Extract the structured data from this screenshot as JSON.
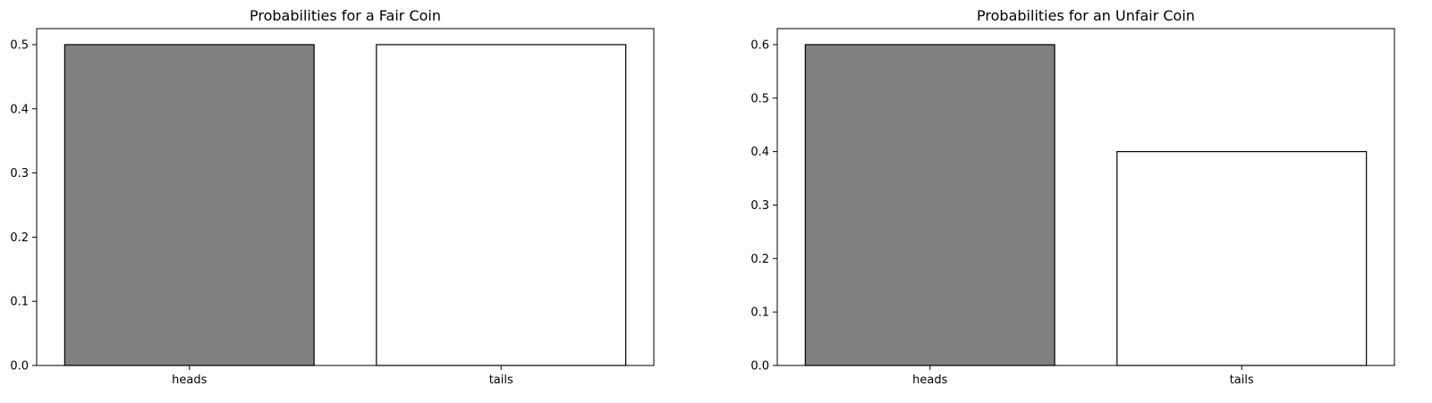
{
  "chart_data": [
    {
      "type": "bar",
      "title": "Probabilities for a Fair Coin",
      "xlabel": "",
      "ylabel": "",
      "categories": [
        "heads",
        "tails"
      ],
      "values": [
        0.5,
        0.5
      ],
      "bar_colors": [
        "#808080",
        "#ffffff"
      ],
      "edge_color": "#000000",
      "ylim": [
        0,
        0.525
      ],
      "yticks": [
        0.0,
        0.1,
        0.2,
        0.3,
        0.4,
        0.5
      ],
      "ytick_labels": [
        "0.0",
        "0.1",
        "0.2",
        "0.3",
        "0.4",
        "0.5"
      ],
      "grid": false,
      "legend": "none"
    },
    {
      "type": "bar",
      "title": "Probabilities for an Unfair Coin",
      "xlabel": "",
      "ylabel": "",
      "categories": [
        "heads",
        "tails"
      ],
      "values": [
        0.6,
        0.4
      ],
      "bar_colors": [
        "#808080",
        "#ffffff"
      ],
      "edge_color": "#000000",
      "ylim": [
        0,
        0.63
      ],
      "yticks": [
        0.0,
        0.1,
        0.2,
        0.3,
        0.4,
        0.5,
        0.6
      ],
      "ytick_labels": [
        "0.0",
        "0.1",
        "0.2",
        "0.3",
        "0.4",
        "0.5",
        "0.6"
      ],
      "grid": false,
      "legend": "none"
    }
  ]
}
